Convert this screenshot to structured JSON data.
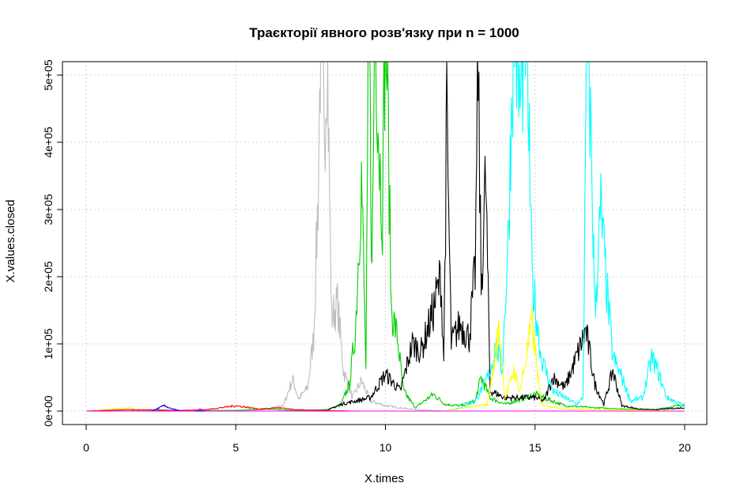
{
  "chart_data": {
    "type": "line",
    "title": "Траєкторії явного розв'язку при n = 1000",
    "xlabel": "X.times",
    "ylabel": "X.values.closed",
    "xlim": [
      0,
      20
    ],
    "ylim": [
      0,
      520000
    ],
    "x_ticks": [
      "0",
      "5",
      "10",
      "15",
      "20"
    ],
    "y_ticks": [
      "0e+00",
      "1e+05",
      "2e+05",
      "3e+05",
      "4e+05",
      "5e+05"
    ],
    "grid": true,
    "legend": "none",
    "series": [
      {
        "color": "#bebebe",
        "points": [
          [
            0,
            0
          ],
          [
            5,
            0
          ],
          [
            6,
            2000
          ],
          [
            6.6,
            9000
          ],
          [
            6.9,
            48000
          ],
          [
            7.1,
            18000
          ],
          [
            7.4,
            35000
          ],
          [
            7.6,
            110000
          ],
          [
            7.75,
            320000
          ],
          [
            7.85,
            600000
          ],
          [
            7.95,
            390000
          ],
          [
            8.05,
            560000
          ],
          [
            8.2,
            140000
          ],
          [
            8.4,
            160000
          ],
          [
            8.6,
            60000
          ],
          [
            8.9,
            20000
          ],
          [
            9.2,
            45000
          ],
          [
            9.5,
            15000
          ],
          [
            10,
            8000
          ],
          [
            11,
            2000
          ],
          [
            12,
            0
          ],
          [
            20,
            0
          ]
        ]
      },
      {
        "color": "#00cd00",
        "points": [
          [
            0,
            0
          ],
          [
            5,
            1000
          ],
          [
            6,
            3000
          ],
          [
            7,
            1000
          ],
          [
            8,
            2000
          ],
          [
            8.5,
            8000
          ],
          [
            8.8,
            40000
          ],
          [
            9.0,
            120000
          ],
          [
            9.2,
            350000
          ],
          [
            9.35,
            60000
          ],
          [
            9.45,
            600000
          ],
          [
            9.55,
            200000
          ],
          [
            9.65,
            600000
          ],
          [
            9.8,
            380000
          ],
          [
            9.9,
            300000
          ],
          [
            10.0,
            600000
          ],
          [
            10.1,
            400000
          ],
          [
            10.2,
            150000
          ],
          [
            10.4,
            110000
          ],
          [
            10.6,
            30000
          ],
          [
            11,
            5000
          ],
          [
            11.6,
            25000
          ],
          [
            12,
            10000
          ],
          [
            12.5,
            8000
          ],
          [
            13,
            15000
          ],
          [
            13.2,
            50000
          ],
          [
            13.5,
            20000
          ],
          [
            14,
            10000
          ],
          [
            15,
            25000
          ],
          [
            16,
            8000
          ],
          [
            17,
            5000
          ],
          [
            18,
            3000
          ],
          [
            19,
            2000
          ],
          [
            20,
            10000
          ]
        ]
      },
      {
        "color": "#000000",
        "points": [
          [
            0,
            0
          ],
          [
            8,
            0
          ],
          [
            8.5,
            10000
          ],
          [
            9.5,
            20000
          ],
          [
            10,
            55000
          ],
          [
            10.5,
            30000
          ],
          [
            10.9,
            100000
          ],
          [
            11.2,
            90000
          ],
          [
            11.6,
            150000
          ],
          [
            11.85,
            200000
          ],
          [
            11.95,
            80000
          ],
          [
            12.05,
            440000
          ],
          [
            12.2,
            100000
          ],
          [
            12.5,
            130000
          ],
          [
            12.8,
            110000
          ],
          [
            13.0,
            210000
          ],
          [
            13.1,
            520000
          ],
          [
            13.2,
            180000
          ],
          [
            13.35,
            350000
          ],
          [
            13.5,
            30000
          ],
          [
            14,
            20000
          ],
          [
            15,
            20000
          ],
          [
            15.3,
            15000
          ],
          [
            15.6,
            50000
          ],
          [
            16,
            35000
          ],
          [
            16.3,
            70000
          ],
          [
            16.7,
            120000
          ],
          [
            17,
            40000
          ],
          [
            17.3,
            10000
          ],
          [
            17.6,
            60000
          ],
          [
            17.9,
            8000
          ],
          [
            18.5,
            3000
          ],
          [
            19,
            2000
          ],
          [
            20,
            5000
          ]
        ]
      },
      {
        "color": "#00ffff",
        "points": [
          [
            0,
            0
          ],
          [
            12,
            0
          ],
          [
            12.5,
            5000
          ],
          [
            13.0,
            15000
          ],
          [
            13.3,
            40000
          ],
          [
            13.5,
            60000
          ],
          [
            13.7,
            100000
          ],
          [
            13.9,
            60000
          ],
          [
            14.1,
            250000
          ],
          [
            14.3,
            600000
          ],
          [
            14.5,
            450000
          ],
          [
            14.7,
            600000
          ],
          [
            14.9,
            200000
          ],
          [
            15.2,
            80000
          ],
          [
            15.6,
            30000
          ],
          [
            16.0,
            20000
          ],
          [
            16.4,
            10000
          ],
          [
            16.6,
            20000
          ],
          [
            16.75,
            600000
          ],
          [
            16.9,
            350000
          ],
          [
            17.0,
            150000
          ],
          [
            17.2,
            300000
          ],
          [
            17.4,
            180000
          ],
          [
            17.6,
            80000
          ],
          [
            17.9,
            50000
          ],
          [
            18.2,
            15000
          ],
          [
            18.6,
            20000
          ],
          [
            18.9,
            80000
          ],
          [
            19.1,
            60000
          ],
          [
            19.4,
            20000
          ],
          [
            19.8,
            12000
          ],
          [
            20,
            8000
          ]
        ]
      },
      {
        "color": "#ffff00",
        "points": [
          [
            0,
            0
          ],
          [
            1.5,
            5000
          ],
          [
            1.7,
            0
          ],
          [
            12,
            0
          ],
          [
            13.4,
            10000
          ],
          [
            13.6,
            60000
          ],
          [
            13.8,
            125000
          ],
          [
            14.0,
            20000
          ],
          [
            14.3,
            60000
          ],
          [
            14.5,
            30000
          ],
          [
            14.9,
            130000
          ],
          [
            15.2,
            10000
          ],
          [
            16,
            3000
          ],
          [
            20,
            0
          ]
        ]
      },
      {
        "color": "#ff0000",
        "points": [
          [
            0,
            0
          ],
          [
            1.2,
            2000
          ],
          [
            2.2,
            2000
          ],
          [
            3,
            1000
          ],
          [
            4,
            2000
          ],
          [
            5,
            8000
          ],
          [
            5.8,
            3000
          ],
          [
            6.4,
            5000
          ],
          [
            7,
            2000
          ],
          [
            8,
            1000
          ],
          [
            9,
            0
          ],
          [
            20,
            0
          ]
        ]
      },
      {
        "color": "#0000ff",
        "points": [
          [
            0,
            0
          ],
          [
            2.2,
            0
          ],
          [
            2.6,
            8000
          ],
          [
            2.9,
            3000
          ],
          [
            3.2,
            0
          ],
          [
            20,
            0
          ]
        ]
      },
      {
        "color": "#ff00ff",
        "points": [
          [
            0,
            0
          ],
          [
            3.6,
            0
          ],
          [
            3.8,
            3000
          ],
          [
            4.0,
            0
          ],
          [
            20,
            0
          ]
        ]
      }
    ]
  }
}
